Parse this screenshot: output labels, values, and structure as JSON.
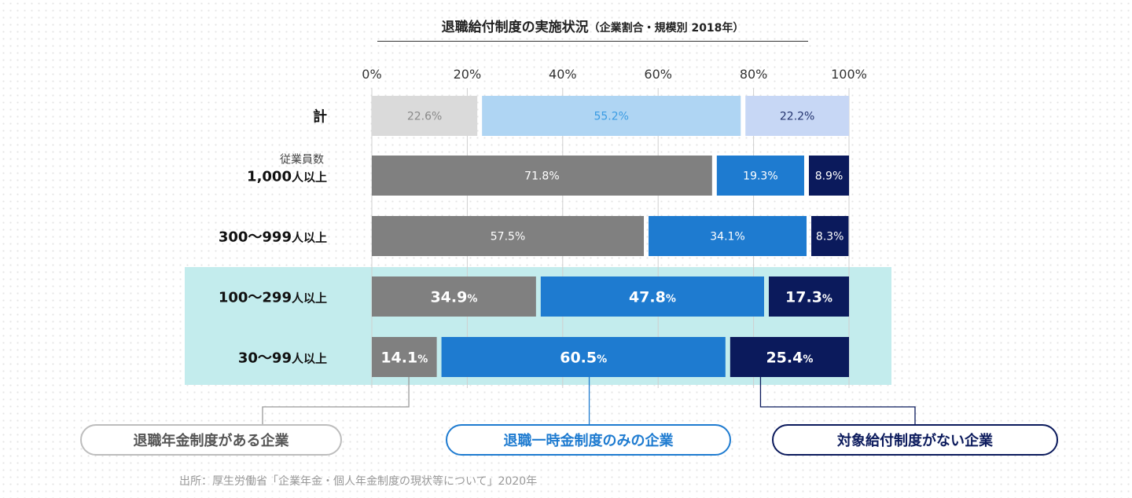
{
  "chart_data": {
    "type": "bar",
    "orientation": "horizontal-stacked-100",
    "title": "退職給付制度の実施状況",
    "subtitle": "（企業割合・規模別 2018年）",
    "x_ticks": [
      "0%",
      "20%",
      "40%",
      "60%",
      "80%",
      "100%"
    ],
    "xlim": [
      0,
      100
    ],
    "grid": true,
    "categories": [
      {
        "label": "計",
        "sublabel": ""
      },
      {
        "label": "1,000人以上",
        "sublabel": "従業員数"
      },
      {
        "label": "300〜999人以上",
        "sublabel": ""
      },
      {
        "label": "100〜299人以上",
        "sublabel": ""
      },
      {
        "label": "30〜99人以上",
        "sublabel": ""
      }
    ],
    "highlighted_categories": [
      3,
      4
    ],
    "series": [
      {
        "name": "退職年金制度がある企業",
        "values": [
          22.6,
          71.8,
          57.5,
          34.9,
          14.1
        ]
      },
      {
        "name": "退職一時金制度のみの企業",
        "values": [
          55.2,
          19.3,
          34.1,
          47.8,
          60.5
        ]
      },
      {
        "name": "対象給付制度がない企業",
        "values": [
          22.2,
          8.9,
          8.3,
          17.3,
          25.4
        ]
      }
    ],
    "data_labels": [
      [
        "22.6%",
        "55.2%",
        "22.2%"
      ],
      [
        "71.8%",
        "19.3%",
        "8.9%"
      ],
      [
        "57.5%",
        "34.1%",
        "8.3%"
      ],
      [
        "34.9%",
        "47.8%",
        "17.3%"
      ],
      [
        "14.1%",
        "60.5%",
        "25.4%"
      ]
    ],
    "colors": {
      "total_row": [
        "#dadada",
        "#afd5f3",
        "#c7d7f5"
      ],
      "total_row_text": [
        "#8a8a8a",
        "#3b9ce3",
        "#24346f"
      ],
      "series": [
        "#808080",
        "#1e7bd0",
        "#0b1a5c"
      ],
      "highlight_band": "#c3eced",
      "grid": "#cfcfcf"
    },
    "source": "出所：厚生労働省「企業年金・個人年金制度の現状等について」2020年"
  }
}
